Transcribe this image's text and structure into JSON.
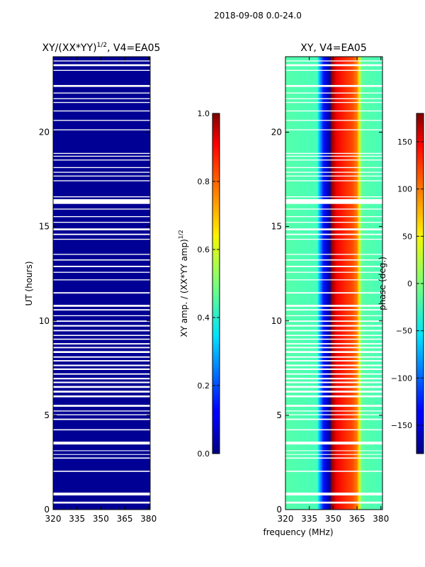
{
  "figure": {
    "suptitle": "2018-09-08 0.0-24.0"
  },
  "chart_data": [
    {
      "type": "heatmap",
      "title": "XY/(XX*YY)",
      "title_sup": "1/2",
      "title_suffix": ", V4=EA05",
      "xlabel": "",
      "ylabel": "UT (hours)",
      "xlim": [
        320,
        381
      ],
      "ylim": [
        0,
        24
      ],
      "xticks": [
        320,
        335,
        350,
        365,
        380
      ],
      "yticks": [
        0,
        5,
        10,
        15,
        20
      ],
      "value_description": "XY amplitude normalized, uniformly near 0.0 (dark blue)",
      "typical_value": 0.02,
      "colorbar": {
        "label": "XY amp. / (XX*YY amp)",
        "label_sup": "1/2",
        "range": [
          0.0,
          1.0
        ],
        "ticks": [
          "0.0",
          "0.2",
          "0.4",
          "0.6",
          "0.8",
          "1.0"
        ],
        "tick_values": [
          0.0,
          0.2,
          0.4,
          0.6,
          0.8,
          1.0
        ]
      }
    },
    {
      "type": "heatmap",
      "title": "XY, V4=EA05",
      "xlabel": "frequency (MHz)",
      "ylabel": "",
      "xlim": [
        320,
        381
      ],
      "ylim": [
        0,
        24
      ],
      "xticks": [
        320,
        335,
        350,
        365,
        380
      ],
      "yticks": [
        0,
        5,
        10,
        15,
        20
      ],
      "phase_profile_deg": {
        "frequency_MHz": [
          320,
          340,
          341,
          344,
          348,
          349,
          352,
          358,
          362,
          365,
          366,
          367,
          368,
          370,
          381
        ],
        "phase": [
          -15,
          -20,
          -60,
          -130,
          -170,
          175,
          140,
          120,
          110,
          90,
          60,
          20,
          -10,
          -15,
          -20
        ]
      },
      "colorbar": {
        "label": "phase (deg.)",
        "range": [
          -180,
          180
        ],
        "ticks": [
          "150",
          "100",
          "50",
          "0",
          "−50",
          "−100",
          "−150"
        ],
        "tick_values": [
          150,
          100,
          50,
          0,
          -50,
          -100,
          -150
        ]
      }
    }
  ],
  "flagged_time_gaps_hours": [
    [
      0.32,
      0.42
    ],
    [
      0.75,
      0.9
    ],
    [
      2.0,
      2.06
    ],
    [
      2.7,
      2.76
    ],
    [
      2.9,
      2.94
    ],
    [
      3.1,
      3.14
    ],
    [
      3.45,
      3.6
    ],
    [
      4.2,
      4.26
    ],
    [
      4.75,
      4.82
    ],
    [
      5.0,
      5.05
    ],
    [
      5.2,
      5.25
    ],
    [
      5.45,
      5.55
    ],
    [
      5.95,
      6.05
    ],
    [
      6.2,
      6.3
    ],
    [
      6.45,
      6.55
    ],
    [
      6.7,
      6.78
    ],
    [
      6.9,
      6.98
    ],
    [
      7.15,
      7.22
    ],
    [
      7.4,
      7.48
    ],
    [
      7.6,
      7.68
    ],
    [
      7.85,
      7.92
    ],
    [
      8.05,
      8.12
    ],
    [
      8.3,
      8.4
    ],
    [
      8.55,
      8.62
    ],
    [
      8.75,
      8.82
    ],
    [
      9.0,
      9.06
    ],
    [
      9.2,
      9.26
    ],
    [
      9.45,
      9.52
    ],
    [
      9.7,
      9.78
    ],
    [
      9.95,
      10.02
    ],
    [
      10.25,
      10.3
    ],
    [
      10.55,
      10.62
    ],
    [
      10.75,
      10.85
    ],
    [
      11.45,
      11.52
    ],
    [
      12.15,
      12.2
    ],
    [
      12.55,
      12.6
    ],
    [
      12.85,
      12.92
    ],
    [
      13.2,
      13.26
    ],
    [
      13.5,
      13.55
    ],
    [
      14.3,
      14.35
    ],
    [
      14.55,
      14.62
    ],
    [
      14.8,
      14.9
    ],
    [
      15.2,
      15.25
    ],
    [
      15.5,
      15.55
    ],
    [
      15.9,
      15.95
    ],
    [
      16.2,
      16.45
    ],
    [
      16.55,
      16.6
    ],
    [
      17.4,
      17.45
    ],
    [
      17.65,
      17.7
    ],
    [
      17.85,
      17.9
    ],
    [
      18.1,
      18.15
    ],
    [
      18.5,
      18.55
    ],
    [
      18.7,
      18.75
    ],
    [
      18.85,
      18.9
    ],
    [
      20.1,
      20.15
    ],
    [
      20.6,
      20.65
    ],
    [
      21.1,
      21.15
    ],
    [
      21.55,
      21.6
    ],
    [
      21.75,
      21.8
    ],
    [
      22.05,
      22.1
    ],
    [
      22.4,
      22.5
    ],
    [
      23.25,
      23.3
    ],
    [
      23.5,
      23.6
    ],
    [
      23.75,
      23.8
    ]
  ]
}
